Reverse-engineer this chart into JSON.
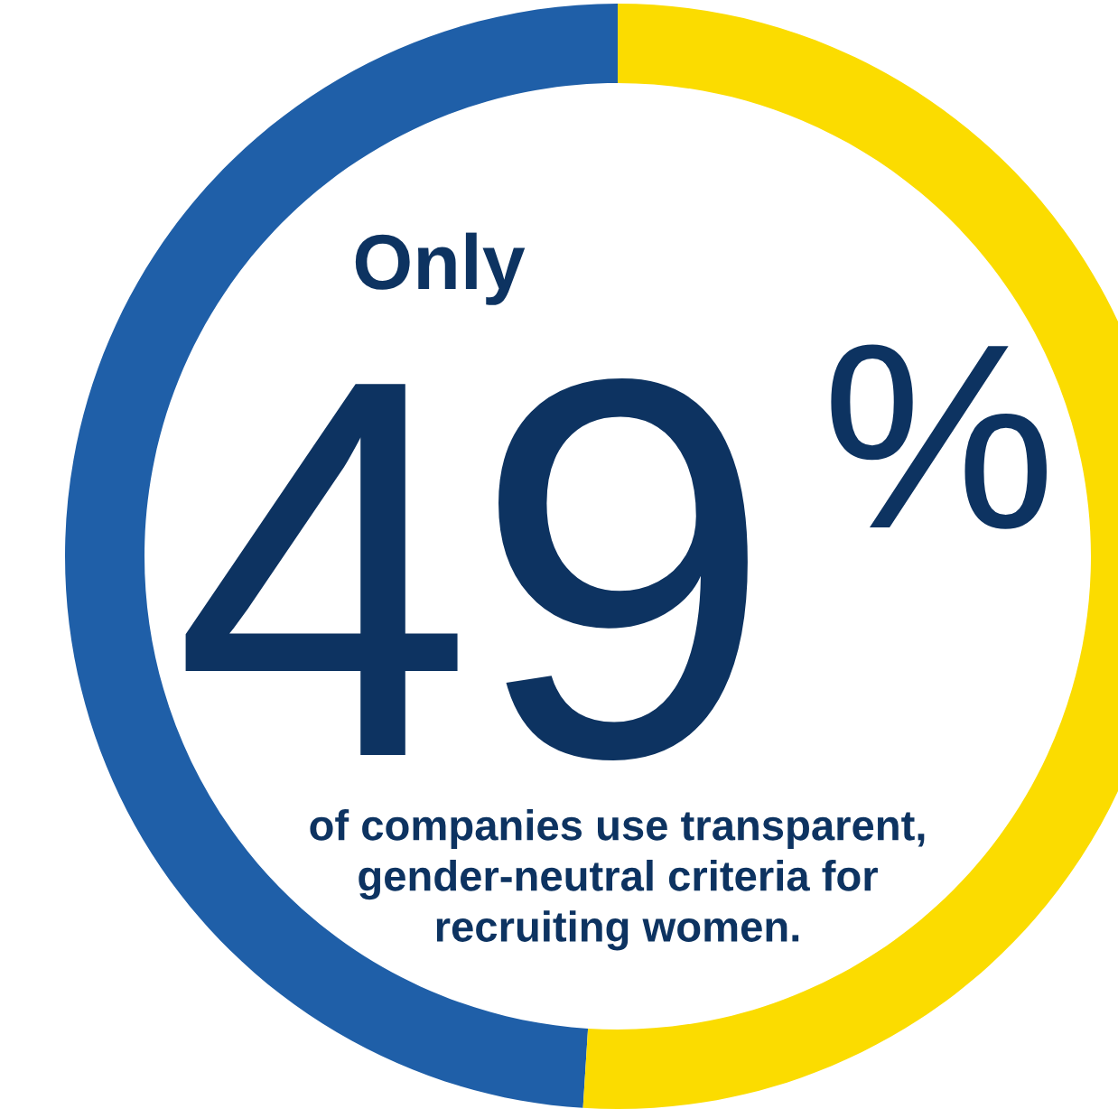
{
  "chart_data": {
    "type": "donut",
    "categories": [
      null,
      null
    ],
    "values": [
      49,
      51
    ],
    "colors": [
      "#1f5fa8",
      "#fbdc00"
    ],
    "value_labels": [
      "49%",
      null
    ],
    "annotations": [
      "Only",
      "of companies use transparent,\ngender-neutral criteria for\nrecruiting women."
    ]
  }
}
